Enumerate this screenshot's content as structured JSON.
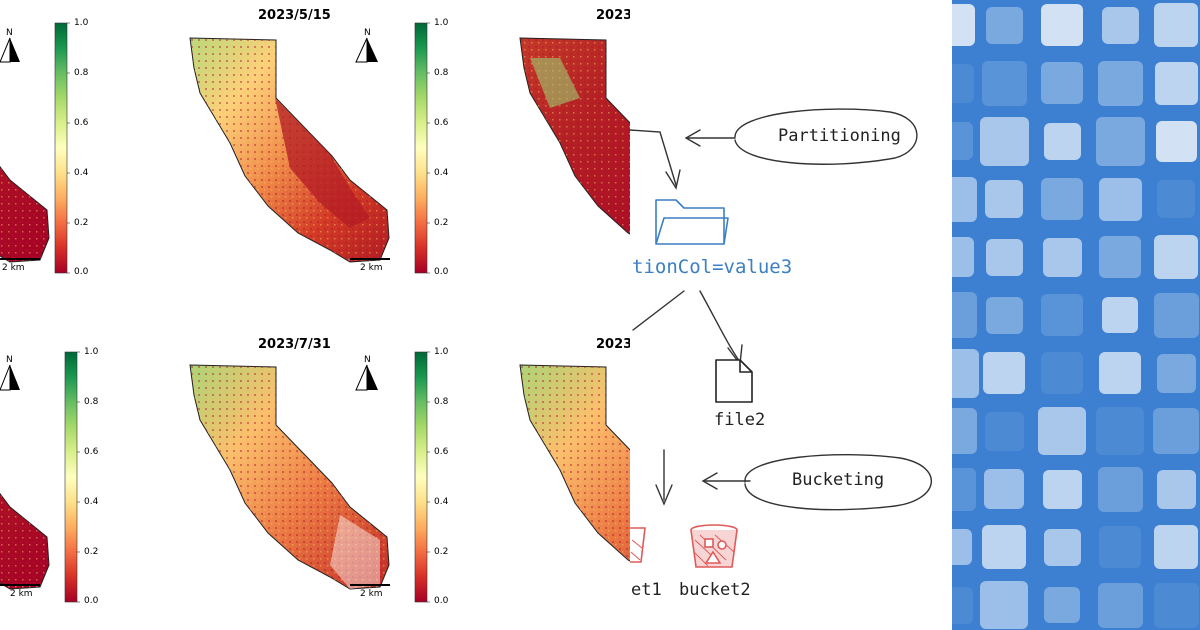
{
  "maps": {
    "panels": [
      {
        "title": "",
        "scale_label": "2 km"
      },
      {
        "title": "2023/5/15",
        "scale_label": "2 km"
      },
      {
        "title": "2023",
        "scale_label": ""
      },
      {
        "title": "",
        "scale_label": "2 km"
      },
      {
        "title": "2023/7/31",
        "scale_label": "2 km"
      },
      {
        "title": "2023/",
        "scale_label": ""
      }
    ],
    "colorbar_ticks": [
      "1.0",
      "0.8",
      "0.6",
      "0.4",
      "0.2",
      "0.0"
    ],
    "north_label": "N",
    "colormap": [
      "#a50026",
      "#d73027",
      "#f46d43",
      "#fdae61",
      "#fee08b",
      "#ffffbf",
      "#d9ef8b",
      "#a6d96a",
      "#66bd63",
      "#1a9850",
      "#006837"
    ]
  },
  "diagram": {
    "partitioning_label": "Partitioning",
    "folder_label": "tionCol=value3",
    "file_label": "file2",
    "bucketing_label": "Bucketing",
    "bucket1_label": "et1",
    "bucket2_label": "bucket2",
    "folder_color": "#3b7fc4",
    "bucket_color": "#e05a5a"
  },
  "pattern": {
    "background": "#3d7fd0"
  }
}
